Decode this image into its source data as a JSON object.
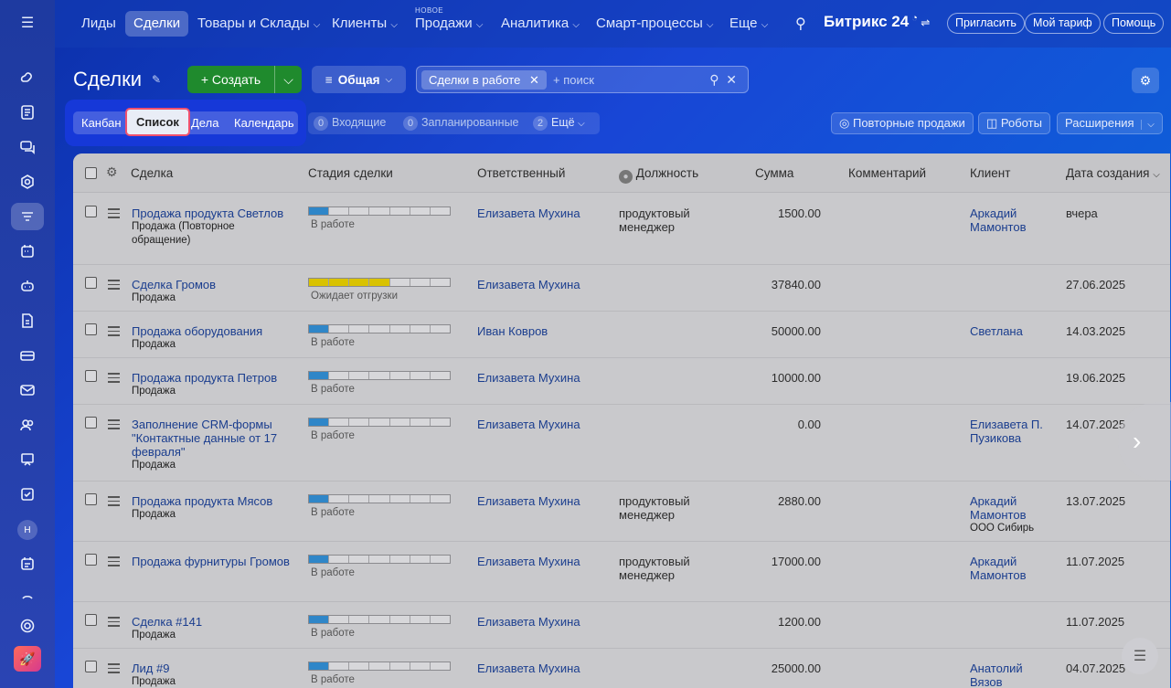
{
  "topnav": {
    "items": [
      "Лиды",
      "Сделки",
      "Товары и Склады",
      "Клиенты",
      "Продажи",
      "Аналитика",
      "Смарт-процессы",
      "Еще"
    ],
    "new_badge": "НОВОЕ",
    "brand": "Битрикс 24",
    "invite": "Пригласить",
    "tariff": "Мой тариф",
    "help": "Помощь"
  },
  "toolbar": {
    "title": "Сделки",
    "create": "Создать",
    "filter": "Общая",
    "search_chip": "Сделки в работе",
    "search_placeholder": "+ поиск"
  },
  "views": [
    "Канбан",
    "Список",
    "Дела",
    "Календарь"
  ],
  "counters": {
    "incoming_num": "0",
    "incoming": "Входящие",
    "planned_num": "0",
    "planned": "Запланированные",
    "more_num": "2",
    "more": "Ещё"
  },
  "actions": {
    "repeat": "Повторные продажи",
    "robots": "Роботы",
    "extensions": "Расширения"
  },
  "table": {
    "headers": [
      "Сделка",
      "Стадия сделки",
      "Ответственный",
      "Должность",
      "Сумма",
      "Комментарий",
      "Клиент",
      "Дата создания"
    ],
    "rows": [
      {
        "deal": "Продажа продукта Светлов",
        "type": "Продажа (Повторное обращение)",
        "stage": "В работе",
        "progress": 0.14,
        "owner": "Елизавета Мухина",
        "position": "продуктовый менеджер",
        "sum": "1500.00",
        "client": "Аркадий Мамонтов",
        "company": "",
        "date": "вчера"
      },
      {
        "deal": "Сделка Громов",
        "type": "Продажа",
        "stage": "Ожидает отгрузки",
        "progress": 0.57,
        "owner": "Елизавета Мухина",
        "position": "",
        "sum": "37840.00",
        "client": "",
        "company": "",
        "date": "27.06.2025"
      },
      {
        "deal": "Продажа оборудования",
        "type": "Продажа",
        "stage": "В работе",
        "progress": 0.14,
        "owner": "Иван Ковров",
        "position": "",
        "sum": "50000.00",
        "client": "Светлана",
        "company": "",
        "date": "14.03.2025"
      },
      {
        "deal": "Продажа продукта Петров",
        "type": "Продажа",
        "stage": "В работе",
        "progress": 0.14,
        "owner": "Елизавета Мухина",
        "position": "",
        "sum": "10000.00",
        "client": "",
        "company": "",
        "date": "19.06.2025"
      },
      {
        "deal": "Заполнение CRM-формы \"Контактные данные от 17 февраля\"",
        "type": "Продажа",
        "stage": "В работе",
        "progress": 0.14,
        "owner": "Елизавета Мухина",
        "position": "",
        "sum": "0.00",
        "client": "Елизавета П. Пузикова",
        "company": "",
        "date": "14.07.2025"
      },
      {
        "deal": "Продажа продукта Мясов",
        "type": "Продажа",
        "stage": "В работе",
        "progress": 0.14,
        "owner": "Елизавета Мухина",
        "position": "продуктовый менеджер",
        "sum": "2880.00",
        "client": "Аркадий Мамонтов",
        "company": "ООО Сибирь",
        "date": "13.07.2025"
      },
      {
        "deal": "Продажа фурнитуры Громов",
        "type": "",
        "stage": "В работе",
        "progress": 0.14,
        "owner": "Елизавета Мухина",
        "position": "продуктовый менеджер",
        "sum": "17000.00",
        "client": "Аркадий Мамонтов",
        "company": "",
        "date": "11.07.2025"
      },
      {
        "deal": "Сделка #141",
        "type": "Продажа",
        "stage": "В работе",
        "progress": 0.14,
        "owner": "Елизавета Мухина",
        "position": "",
        "sum": "1200.00",
        "client": "",
        "company": "",
        "date": "11.07.2025"
      },
      {
        "deal": "Лид #9",
        "type": "Продажа",
        "stage": "В работе",
        "progress": 0.14,
        "owner": "Елизавета Мухина",
        "position": "",
        "sum": "25000.00",
        "client": "Анатолий Вязов",
        "company": "",
        "date": "04.07.2025"
      }
    ]
  },
  "sidebar_avatar": "Н",
  "colors": {
    "stage_blue": "#2f86c8",
    "stage_yellow": "#d9c200",
    "create_green": "#1f8a2d",
    "highlight_red": "#f0506e"
  }
}
